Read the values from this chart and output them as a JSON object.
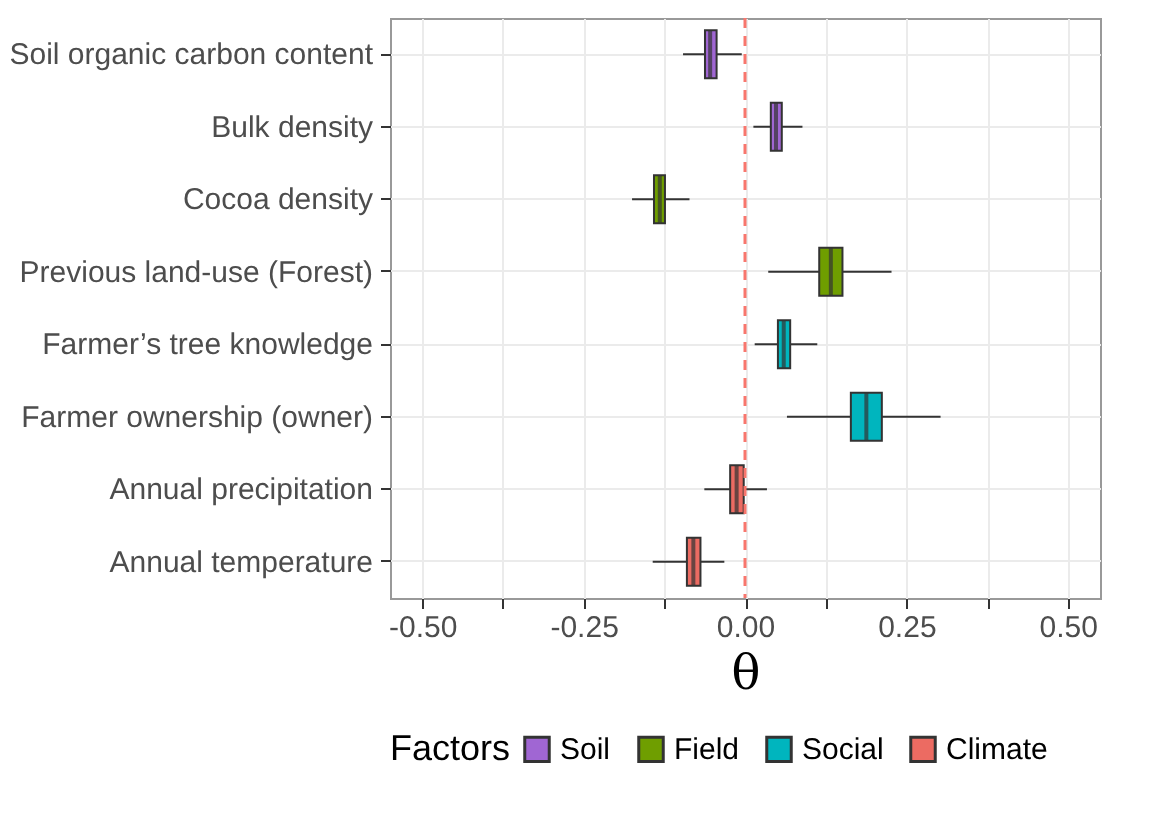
{
  "chart_data": {
    "type": "box",
    "orientation": "horizontal",
    "xlabel": "θ",
    "legend_title": "Factors",
    "legend": "bottom",
    "grid": true,
    "categories": [
      "Soil organic carbon content",
      "Bulk density",
      "Cocoa density",
      "Previous land-use (Forest)",
      "Farmer’s tree knowledge",
      "Farmer ownership (owner)",
      "Annual precipitation",
      "Annual temperature"
    ],
    "xlim": [
      -0.55,
      0.55
    ],
    "xticks": [
      {
        "value": -0.5,
        "label": "-0.50"
      },
      {
        "value": -0.375,
        "label": null
      },
      {
        "value": -0.25,
        "label": "-0.25"
      },
      {
        "value": -0.125,
        "label": null
      },
      {
        "value": 0,
        "label": "0.00"
      },
      {
        "value": 0.125,
        "label": null
      },
      {
        "value": 0.25,
        "label": "0.25"
      },
      {
        "value": 0.375,
        "label": null
      },
      {
        "value": 0.5,
        "label": "0.50"
      }
    ],
    "ref_lines": [
      {
        "axis": "x",
        "value": 0,
        "color": "#f8766d",
        "line_style": "dashed"
      }
    ],
    "series": [
      {
        "name": "Soil",
        "color": "#a066d3",
        "boxes": [
          {
            "low": -0.096,
            "q1": -0.062,
            "median": -0.054,
            "q3": -0.044,
            "high": -0.005
          },
          {
            "low": 0.013,
            "q1": 0.04,
            "median": 0.048,
            "q3": 0.057,
            "high": 0.089
          },
          null,
          null,
          null,
          null,
          null,
          null
        ]
      },
      {
        "name": "Field",
        "color": "#6f9e00",
        "boxes": [
          null,
          null,
          {
            "low": -0.175,
            "q1": -0.141,
            "median": -0.132,
            "q3": -0.124,
            "high": -0.086
          },
          {
            "low": 0.036,
            "q1": 0.115,
            "median": 0.133,
            "q3": 0.151,
            "high": 0.227
          },
          null,
          null,
          null,
          null
        ]
      },
      {
        "name": "Social",
        "color": "#00b5be",
        "boxes": [
          null,
          null,
          null,
          null,
          {
            "low": 0.015,
            "q1": 0.051,
            "median": 0.06,
            "q3": 0.07,
            "high": 0.112
          },
          {
            "low": 0.065,
            "q1": 0.164,
            "median": 0.188,
            "q3": 0.212,
            "high": 0.303
          },
          null,
          null
        ]
      },
      {
        "name": "Climate",
        "color": "#ec6b62",
        "boxes": [
          null,
          null,
          null,
          null,
          null,
          null,
          {
            "low": -0.063,
            "q1": -0.023,
            "median": -0.013,
            "q3": -0.002,
            "high": 0.034
          },
          {
            "low": -0.143,
            "q1": -0.09,
            "median": -0.08,
            "q3": -0.069,
            "high": -0.032
          }
        ]
      }
    ]
  }
}
